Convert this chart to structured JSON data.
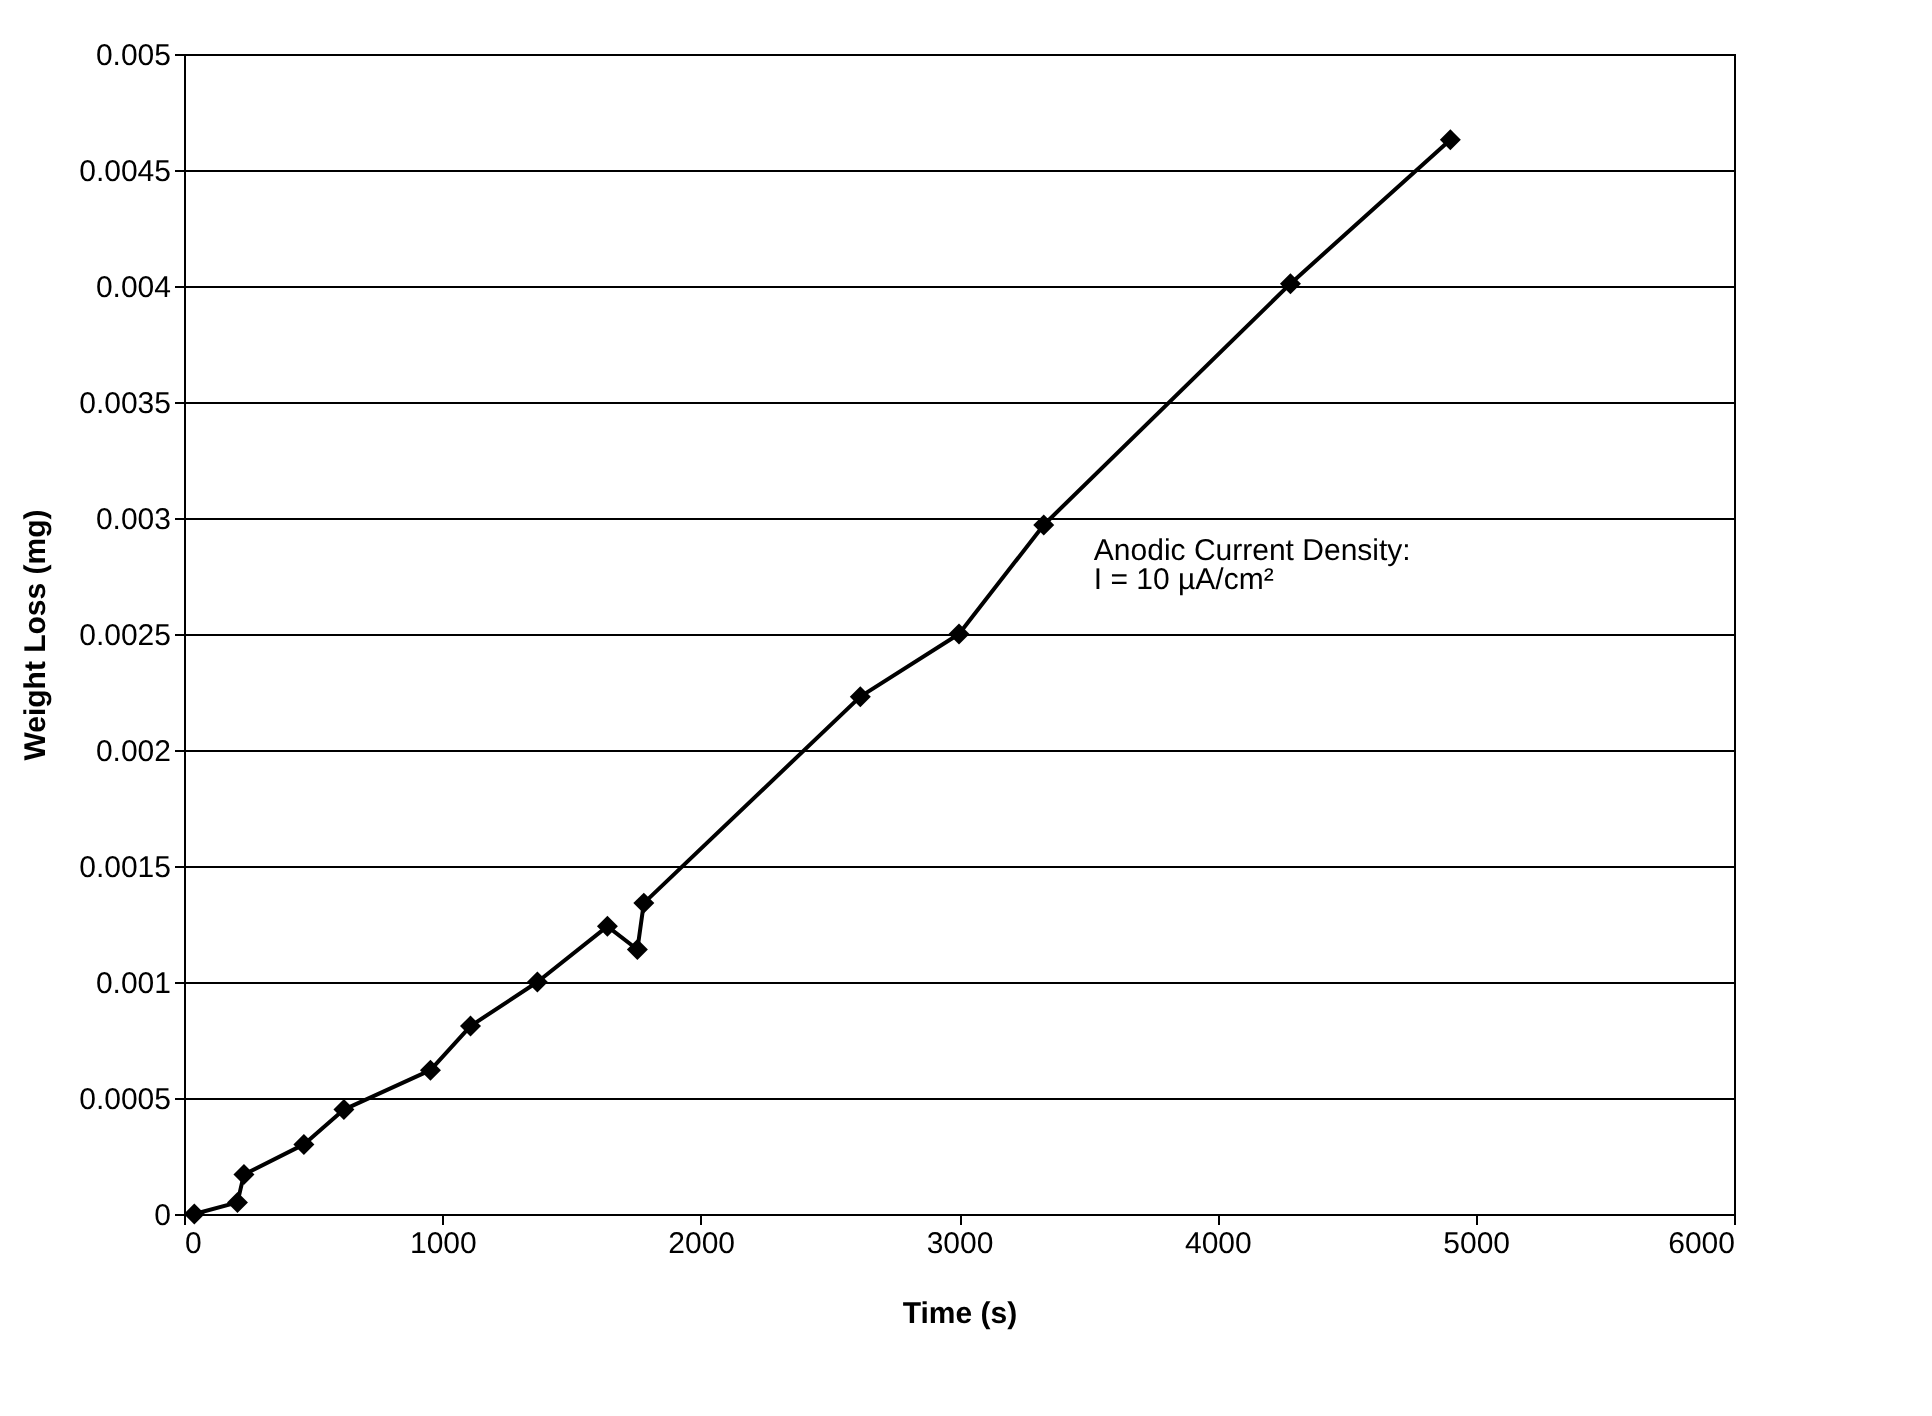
{
  "chart_data": {
    "type": "line",
    "xlabel": "Time (s)",
    "ylabel": "Weight Loss (mg)",
    "x": [
      40,
      207,
      232,
      464,
      619,
      954,
      1109,
      1368,
      1639,
      1755,
      1780,
      2618,
      3000,
      3328,
      4283,
      4902
    ],
    "series": [
      {
        "color": "#000000",
        "values": [
          0,
          5e-05,
          0.00017,
          0.0003,
          0.00045,
          0.00062,
          0.00081,
          0.001,
          0.00124,
          0.00114,
          0.00134,
          0.00223,
          0.0025,
          0.00297,
          0.00401,
          0.00463
        ]
      }
    ],
    "xlim": [
      0,
      6000
    ],
    "xticks": [
      0,
      1000,
      2000,
      3000,
      4000,
      5000,
      6000
    ],
    "ylim": [
      0,
      0.005
    ],
    "yticks": [
      0,
      0.0005,
      0.001,
      0.0015,
      0.002,
      0.0025,
      0.003,
      0.0035,
      0.004,
      0.0045,
      0.005
    ],
    "grid": "y",
    "marker": "diamond",
    "line_style": "solid",
    "annotations": [
      "Anodic Current Density:",
      "I = 10 µA/cm²"
    ]
  }
}
